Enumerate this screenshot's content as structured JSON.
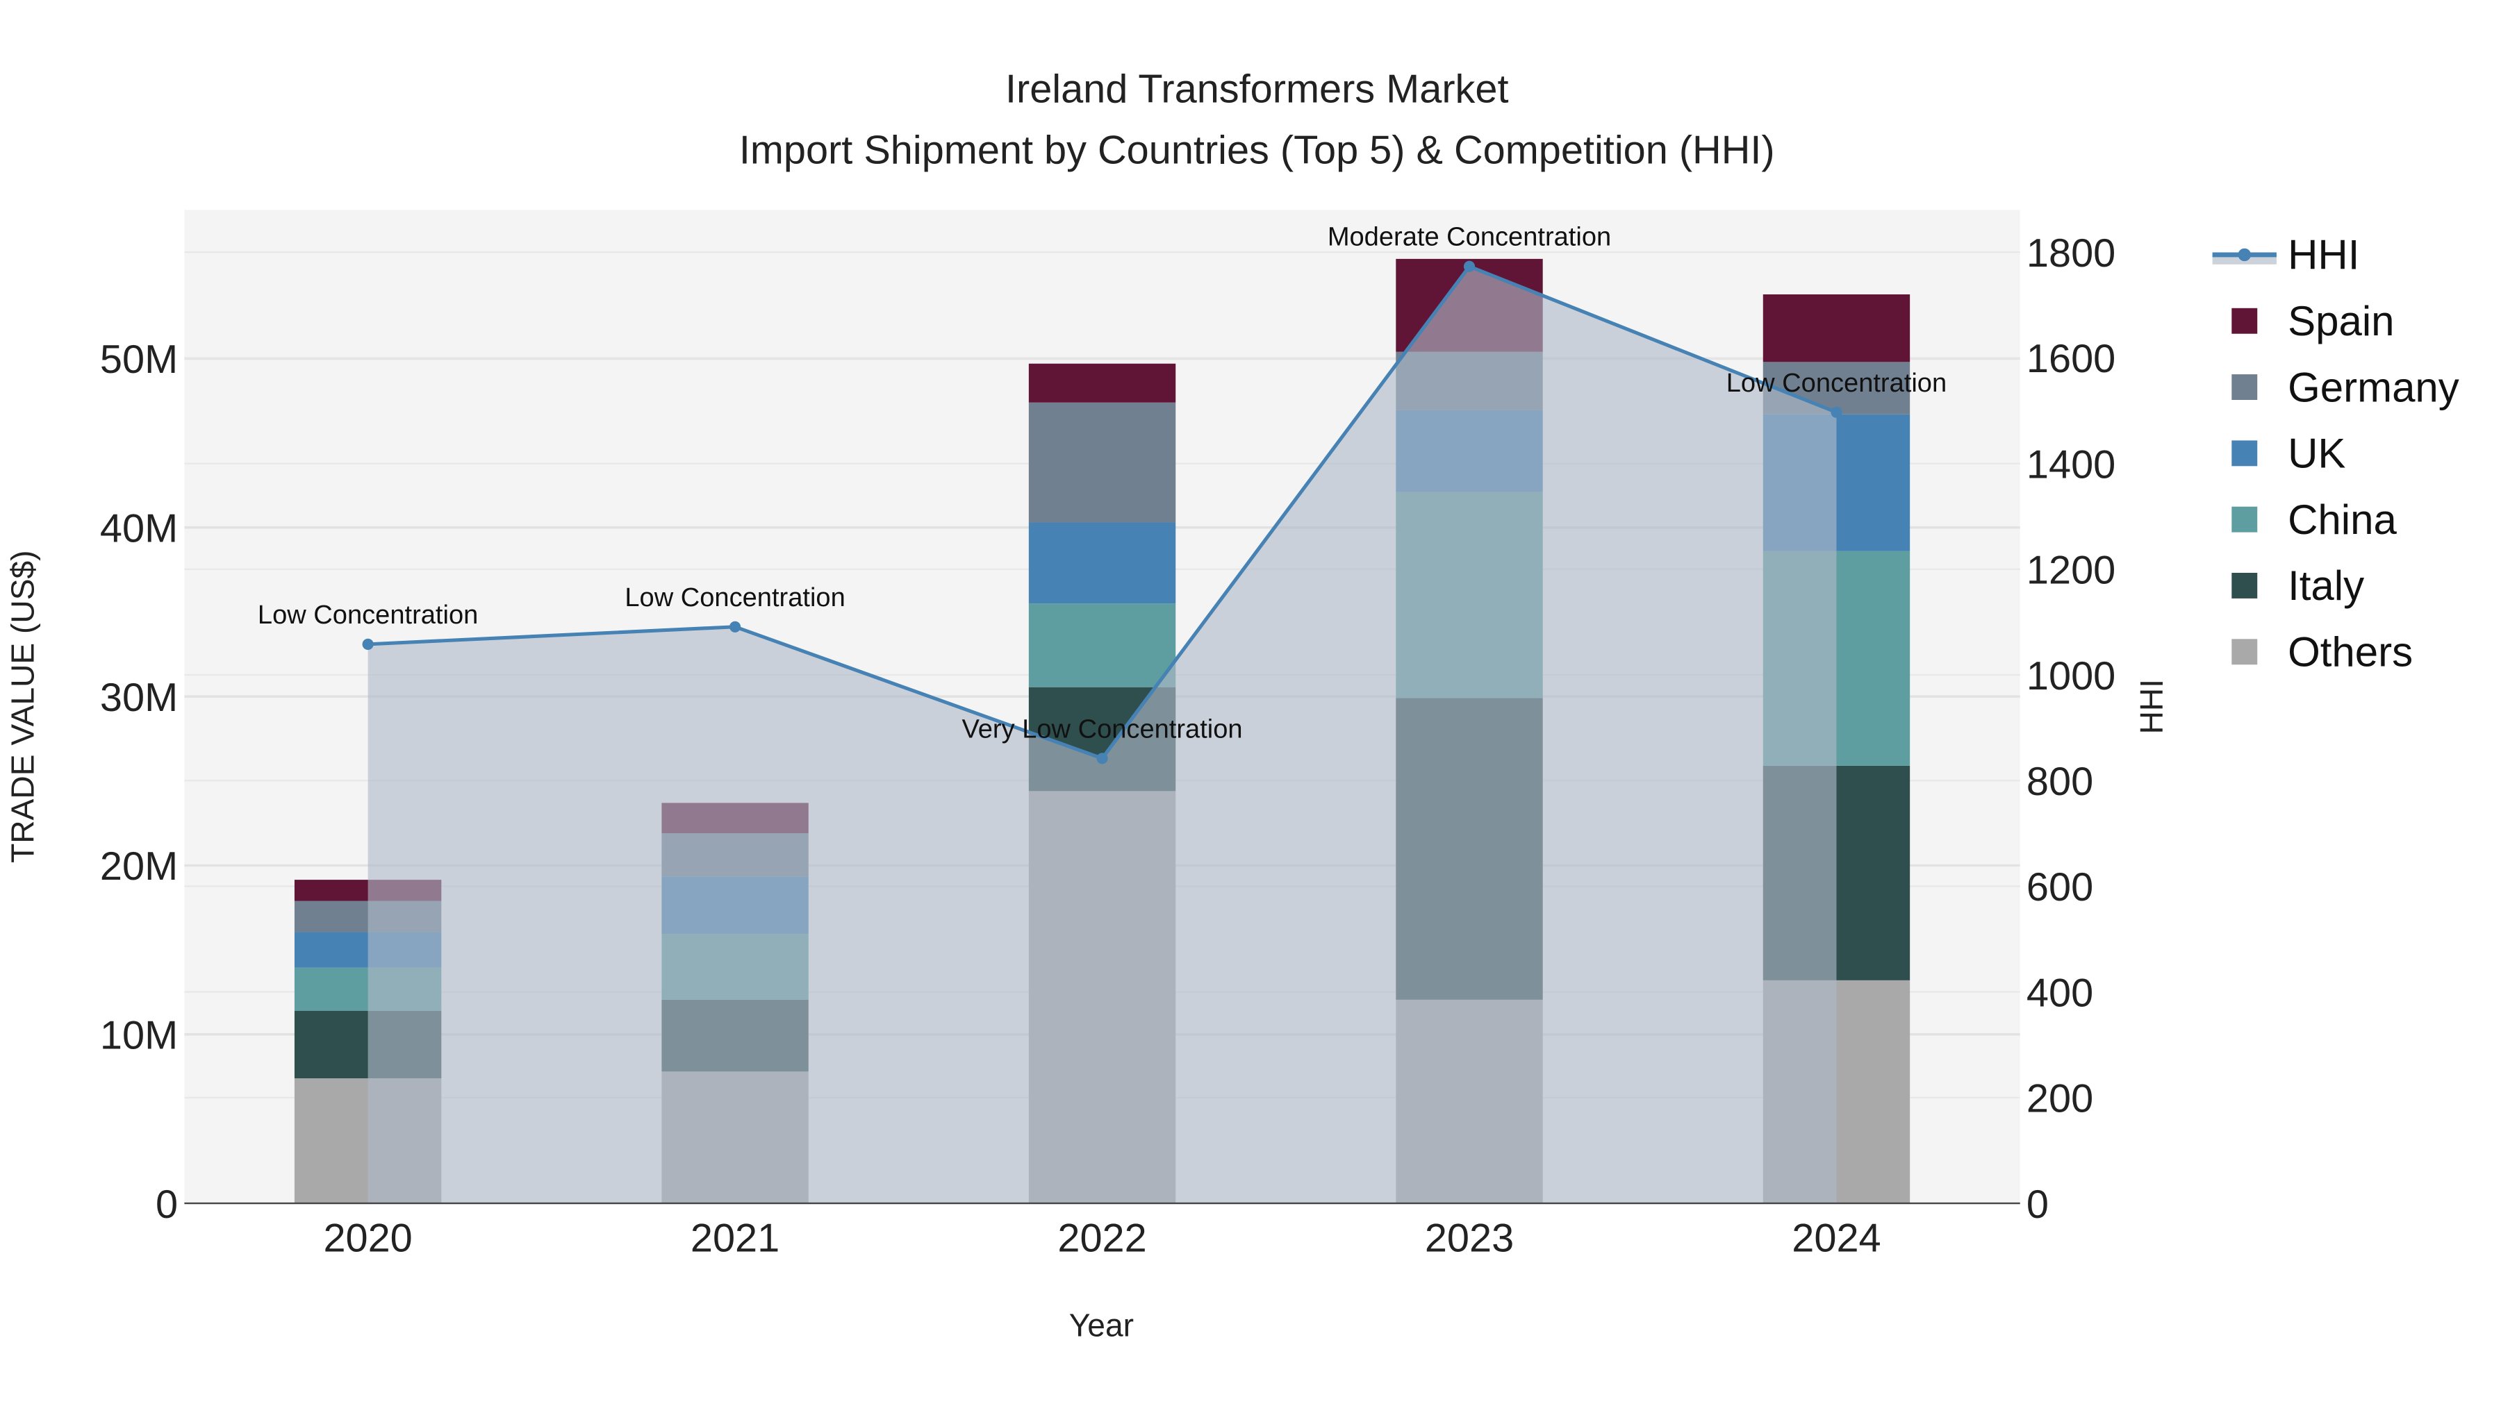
{
  "chart_data": {
    "type": "bar",
    "stacked": true,
    "title": "Ireland Transformers Market",
    "subtitle": "Import Shipment by Countries (Top 5) & Competition (HHI)",
    "xlabel": "Year",
    "ylabel": "TRADE VALUE (US$)",
    "y2label": "HHI",
    "categories": [
      "2020",
      "2021",
      "2022",
      "2023",
      "2024"
    ],
    "ylim": [
      0,
      58800000
    ],
    "y_ticks": [
      0,
      10000000,
      20000000,
      30000000,
      40000000,
      50000000
    ],
    "y_tick_labels": [
      "0",
      "10M",
      "20M",
      "30M",
      "40M",
      "50M"
    ],
    "y2lim": [
      0,
      1880
    ],
    "y2_ticks": [
      0,
      200,
      400,
      600,
      800,
      1000,
      1200,
      1400,
      1600,
      1800
    ],
    "y2_tick_labels": [
      "0",
      "200",
      "400",
      "600",
      "800",
      "1000",
      "1200",
      "1400",
      "1600",
      "1800"
    ],
    "grid": true,
    "legend_position": "right",
    "series": [
      {
        "name": "Others",
        "color": "#a9a9a9",
        "values": [
          7400000,
          7800000,
          24400000,
          12050000,
          13200000
        ]
      },
      {
        "name": "Italy",
        "color": "#2f4f4f",
        "values": [
          4000000,
          4250000,
          6150000,
          17850000,
          12700000
        ]
      },
      {
        "name": "China",
        "color": "#5f9ea0",
        "values": [
          2550000,
          3900000,
          4950000,
          12200000,
          12700000
        ]
      },
      {
        "name": "UK",
        "color": "#4682b4",
        "values": [
          2100000,
          3400000,
          4800000,
          4850000,
          8100000
        ]
      },
      {
        "name": "Germany",
        "color": "#708090",
        "values": [
          1850000,
          2550000,
          7100000,
          3450000,
          3100000
        ]
      },
      {
        "name": "Spain",
        "color": "#601436",
        "values": [
          1250000,
          1800000,
          2300000,
          5500000,
          4000000
        ]
      }
    ],
    "line_series": {
      "name": "HHI",
      "color": "#4682b4",
      "fill_color": "#b0bac8",
      "axis": "y2",
      "values": [
        1058,
        1091,
        842,
        1773,
        1497
      ],
      "annotations": [
        "Low Concentration",
        "Low Concentration",
        "Very Low Concentration",
        "Moderate Concentration",
        "Low Concentration"
      ]
    },
    "legend_order": [
      "HHI",
      "Spain",
      "Germany",
      "UK",
      "China",
      "Italy",
      "Others"
    ]
  }
}
